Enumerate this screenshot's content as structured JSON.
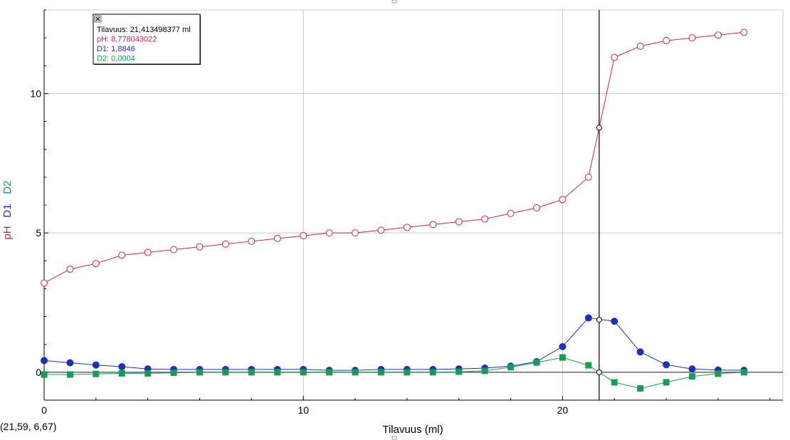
{
  "chart_data": {
    "type": "line",
    "xlabel": "Tilavuus (ml)",
    "ylabels": [
      {
        "text": "pH",
        "color": "#c8284b"
      },
      {
        "text": "D1",
        "color": "#1f2fb8"
      },
      {
        "text": "D2",
        "color": "#1a9a55"
      }
    ],
    "xlim": [
      0,
      28.5
    ],
    "ylim": [
      -1.0,
      13.0
    ],
    "x_ticks": [
      0,
      10,
      20
    ],
    "y_ticks": [
      0,
      5,
      10
    ],
    "grid": true,
    "colors": {
      "pH": "#c8284b",
      "D1": "#1f2fb8",
      "D2": "#1a9a55",
      "cursor": "#000000",
      "grid": "#c8c8c8"
    },
    "x": [
      0,
      1,
      2,
      3,
      4,
      5,
      6,
      7,
      8,
      9,
      10,
      11,
      12,
      13,
      14,
      15,
      16,
      17,
      18,
      19,
      20,
      21,
      22,
      23,
      24,
      25,
      26,
      27
    ],
    "series": [
      {
        "name": "pH",
        "marker": "open-circle",
        "values": [
          3.2,
          3.7,
          3.9,
          4.2,
          4.3,
          4.4,
          4.5,
          4.6,
          4.7,
          4.8,
          4.9,
          5.0,
          5.0,
          5.1,
          5.2,
          5.3,
          5.4,
          5.5,
          5.7,
          5.9,
          6.2,
          7.0,
          11.3,
          11.7,
          11.9,
          12.0,
          12.1,
          12.2
        ]
      },
      {
        "name": "D1",
        "marker": "filled-circle",
        "values": [
          0.42,
          0.34,
          0.26,
          0.2,
          0.12,
          0.1,
          0.1,
          0.1,
          0.1,
          0.1,
          0.1,
          0.07,
          0.07,
          0.1,
          0.1,
          0.1,
          0.12,
          0.15,
          0.22,
          0.38,
          0.92,
          1.95,
          1.83,
          0.73,
          0.27,
          0.12,
          0.08,
          0.07
        ]
      },
      {
        "name": "D2",
        "marker": "filled-square",
        "values": [
          -0.08,
          -0.08,
          -0.06,
          -0.04,
          -0.04,
          -0.02,
          0.0,
          0.0,
          0.0,
          0.0,
          0.0,
          0.0,
          0.0,
          0.0,
          0.0,
          0.0,
          0.02,
          0.05,
          0.18,
          0.35,
          0.53,
          0.25,
          -0.36,
          -0.58,
          -0.36,
          -0.15,
          -0.05,
          0.0
        ]
      }
    ],
    "cursor": {
      "x": 21.413498377,
      "points": [
        {
          "series": "pH",
          "y": 8.778043022
        },
        {
          "series": "D1",
          "y": 1.8846
        },
        {
          "series": "D2",
          "y": 0.0004
        }
      ]
    },
    "tooltip": [
      {
        "text": "Tilavuus: 21,413498377 ml",
        "color": "#000000"
      },
      {
        "text": "pH: 8,778043022",
        "color": "#c8284b"
      },
      {
        "text": "D1: 1,8846",
        "color": "#1f2fb8"
      },
      {
        "text": "D2: 0,0004",
        "color": "#1a9a55"
      }
    ],
    "coordinate_readout": "(21,59, 6,67)"
  }
}
